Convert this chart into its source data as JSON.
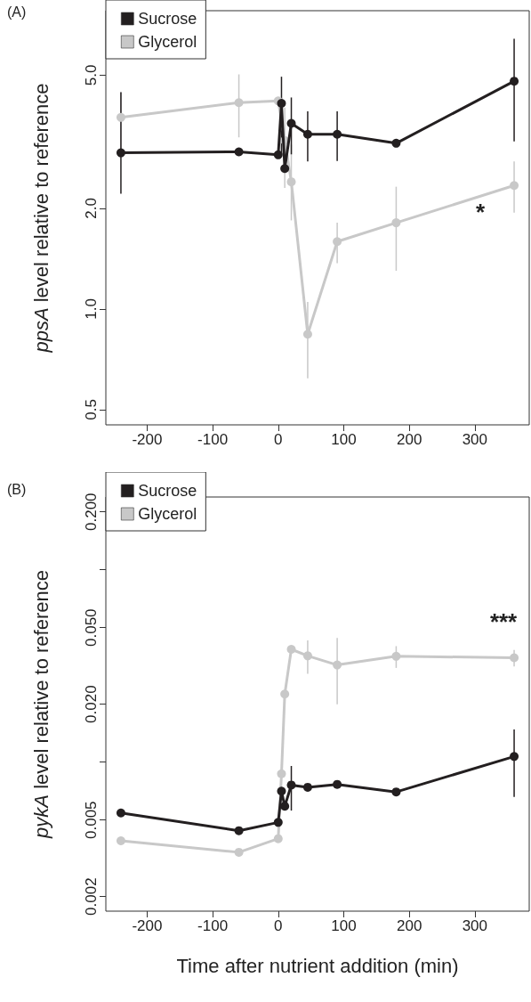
{
  "chart_data": [
    {
      "type": "line",
      "title": "(A)",
      "ylabel": "ppsA level relative to reference",
      "log": "y",
      "legend": "top left",
      "marker": "circle",
      "line_style": "solid",
      "x": [
        -240,
        -60,
        0,
        5,
        10,
        20,
        45,
        90,
        180,
        360
      ],
      "xlim": [
        -263,
        383
      ],
      "xticks": [
        -200,
        -100,
        0,
        100,
        200,
        300
      ],
      "ylim": [
        0.45,
        7.8
      ],
      "yticks": [
        {
          "value": 0.5,
          "label": "0.5"
        },
        {
          "value": 1,
          "label": "1.0"
        },
        {
          "value": 2,
          "label": "2.0"
        },
        {
          "value": 5,
          "label": "5.0"
        }
      ],
      "series": [
        {
          "name": "Glycerol",
          "color": "#c8c8c8",
          "values": [
            3.74,
            4.14,
            4.19,
            null,
            3.19,
            2.4,
            0.84,
            1.59,
            1.81,
            2.34
          ],
          "errors": [
            [
              2.95,
              4.45
            ],
            [
              3.26,
              5.03
            ],
            null,
            null,
            [
              2.3,
              4.0
            ],
            [
              1.84,
              3.1
            ],
            [
              0.62,
              1.05
            ],
            [
              1.37,
              1.81
            ],
            [
              1.3,
              2.32
            ],
            [
              1.94,
              2.76
            ]
          ]
        },
        {
          "name": "Sucrose",
          "color": "#231f20",
          "values": [
            2.93,
            2.95,
            2.89,
            4.12,
            2.63,
            3.59,
            3.33,
            3.33,
            3.13,
            4.8
          ],
          "errors": [
            [
              2.21,
              4.45
            ],
            null,
            null,
            [
              2.9,
              4.95
            ],
            null,
            [
              2.9,
              4.29
            ],
            [
              2.76,
              3.9
            ],
            [
              2.77,
              3.9
            ],
            null,
            [
              3.17,
              6.43
            ]
          ]
        }
      ],
      "annotations": [
        "*"
      ]
    },
    {
      "type": "line",
      "title": "(B)",
      "ylabel": "pykA level relative to reference",
      "xlabel": "Time after nutrient addition (min)",
      "log": "y",
      "legend": "top left",
      "marker": "circle",
      "line_style": "solid",
      "x": [
        -240,
        -60,
        0,
        5,
        10,
        20,
        45,
        90,
        180,
        360
      ],
      "xlim": [
        -263,
        383
      ],
      "xticks": [
        -200,
        -100,
        0,
        100,
        200,
        300
      ],
      "ylim": [
        0.00168,
        0.239
      ],
      "yticks": [
        {
          "value": 0.002,
          "label": "0.002"
        },
        {
          "value": 0.005,
          "label": "0.005"
        },
        {
          "value": 0.01,
          "label": null
        },
        {
          "value": 0.02,
          "label": "0.020"
        },
        {
          "value": 0.05,
          "label": "0.050"
        },
        {
          "value": 0.1,
          "label": null
        },
        {
          "value": 0.2,
          "label": "0.200"
        }
      ],
      "series": [
        {
          "name": "Glycerol",
          "color": "#c8c8c8",
          "values": [
            0.0039,
            0.0034,
            0.004,
            0.0087,
            0.0226,
            0.0386,
            0.0357,
            0.032,
            0.0355,
            0.0349
          ],
          "errors": [
            null,
            null,
            null,
            null,
            null,
            null,
            [
              0.0288,
              0.0429
            ],
            [
              0.02,
              0.0442
            ],
            [
              0.0309,
              0.0401
            ],
            [
              0.0314,
              0.0383
            ]
          ]
        },
        {
          "name": "Sucrose",
          "color": "#231f20",
          "values": [
            0.00544,
            0.0044,
            0.00486,
            0.00707,
            0.0059,
            0.0076,
            0.0074,
            0.00766,
            0.007,
            0.0107
          ],
          "errors": [
            null,
            null,
            null,
            null,
            null,
            [
              0.0056,
              0.00955
            ],
            null,
            null,
            null,
            [
              0.0066,
              0.0148
            ]
          ]
        }
      ],
      "annotations": [
        "***"
      ]
    }
  ]
}
